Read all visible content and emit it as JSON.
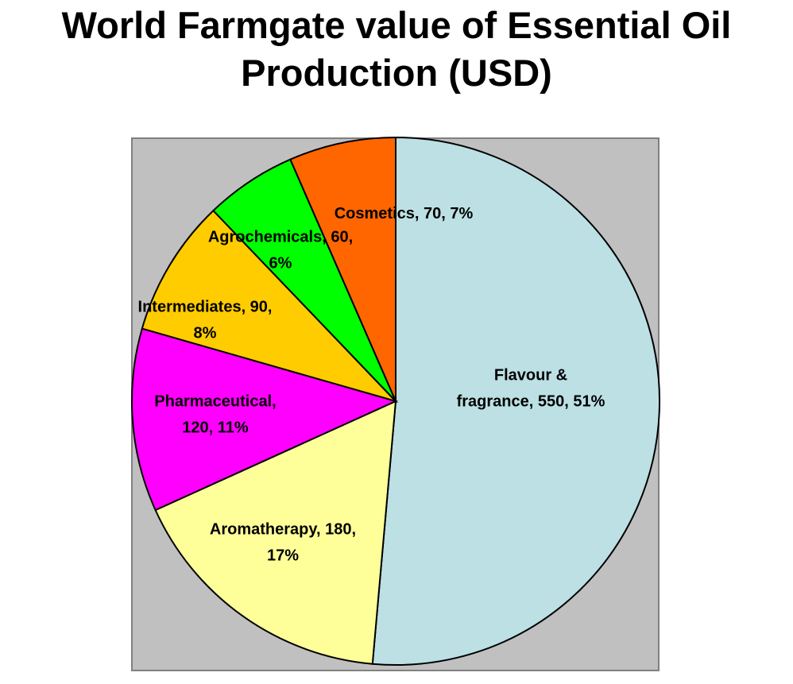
{
  "chart_data": {
    "type": "pie",
    "title": "World Farmgate value of Essential Oil Production (USD)",
    "title_lines": [
      "World Farmgate value of Essential Oil",
      "Production (USD)"
    ],
    "plot_background": "#c0c0c0",
    "slices": [
      {
        "label": "Flavour & fragrance",
        "value": 550,
        "percent": "51%",
        "color": "#bce0e4",
        "text_lines": [
          "Flavour &",
          "fragrance, 550, 51%"
        ]
      },
      {
        "label": "Aromatherapy",
        "value": 180,
        "percent": "17%",
        "color": "#ffff99",
        "text_lines": [
          "Aromatherapy, 180,",
          "17%"
        ]
      },
      {
        "label": "Pharmaceutical",
        "value": 120,
        "percent": "11%",
        "color": "#ff00ff",
        "text_lines": [
          "Pharmaceutical,",
          "120, 11%"
        ]
      },
      {
        "label": "Intermediates",
        "value": 90,
        "percent": "8%",
        "color": "#ffcc00",
        "text_lines": [
          "Intermediates, 90,",
          "8%"
        ]
      },
      {
        "label": "Agrochemicals",
        "value": 60,
        "percent": "6%",
        "color": "#00ff00",
        "text_lines": [
          "Agrochemicals, 60,",
          "6%"
        ]
      },
      {
        "label": "Cosmetics",
        "value": 70,
        "percent": "7%",
        "color": "#ff6600",
        "text_lines": [
          "Cosmetics, 70, 7%"
        ]
      }
    ]
  }
}
